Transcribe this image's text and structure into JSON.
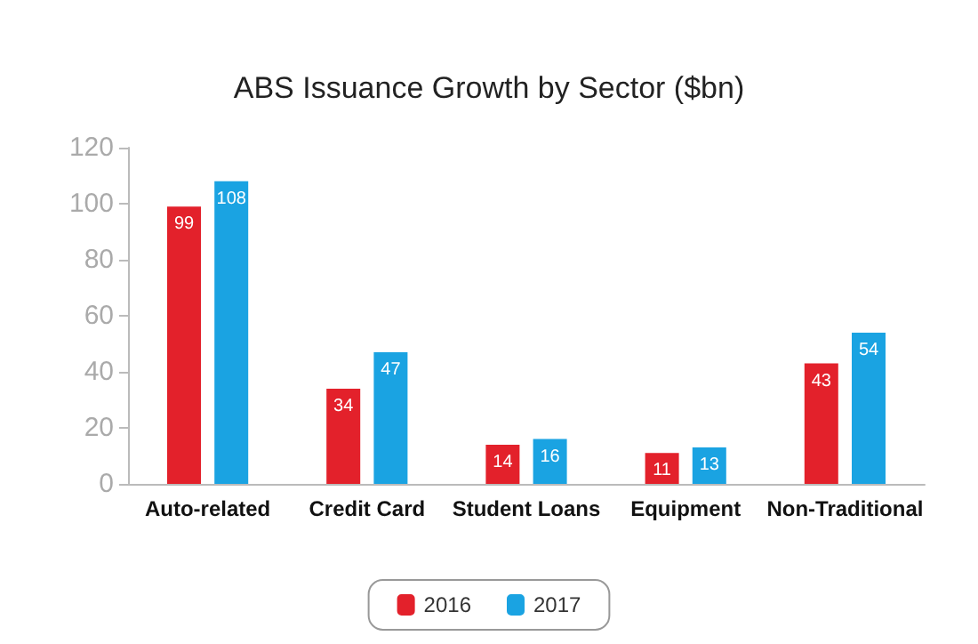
{
  "chart_data": {
    "type": "bar",
    "title": "ABS Issuance Growth by Sector ($bn)",
    "categories": [
      "Auto-related",
      "Credit Card",
      "Student Loans",
      "Equipment",
      "Non-Traditional"
    ],
    "series": [
      {
        "name": "2016",
        "color": "#e3212b",
        "values": [
          99,
          34,
          14,
          11,
          43
        ]
      },
      {
        "name": "2017",
        "color": "#1aa3e2",
        "values": [
          108,
          47,
          16,
          13,
          54
        ]
      }
    ],
    "ylim": [
      0,
      120
    ],
    "yticks": [
      0,
      20,
      40,
      60,
      80,
      100,
      120
    ],
    "grid": false,
    "legend": "bottom",
    "data_labels": true
  }
}
